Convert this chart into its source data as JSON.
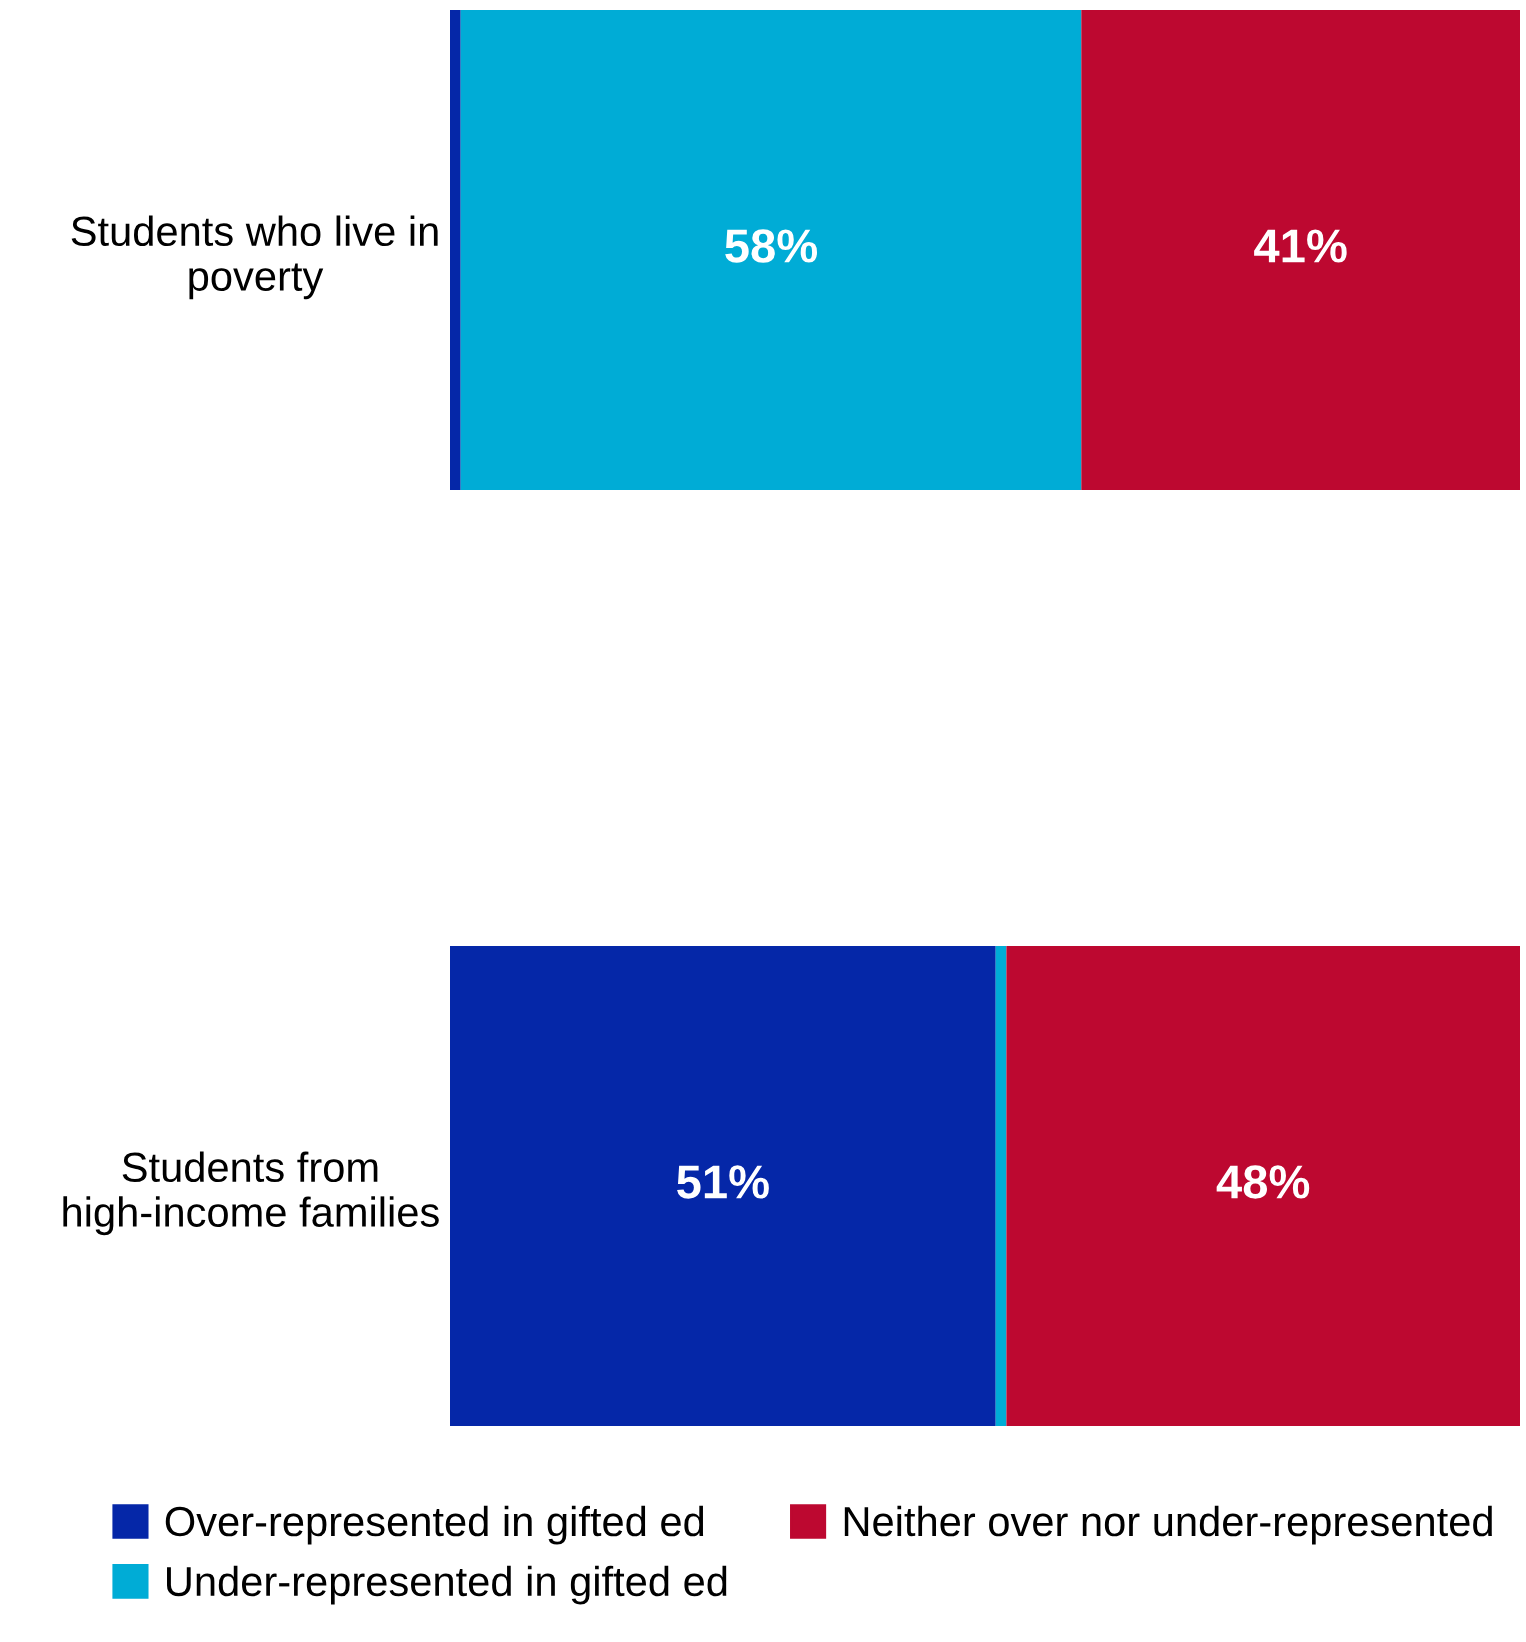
{
  "chart_data": {
    "type": "bar",
    "orientation": "horizontal",
    "stacked": true,
    "categories": [
      "Students who live in poverty",
      "Students from high-income families"
    ],
    "series": [
      {
        "name": "Over-represented in gifted ed",
        "color": "#0527a8",
        "values": [
          1,
          51
        ],
        "value_labels": [
          null,
          "51%"
        ]
      },
      {
        "name": "Under-represented in gifted ed",
        "color": "#00acd6",
        "values": [
          58,
          1
        ],
        "value_labels": [
          "58%",
          null
        ]
      },
      {
        "name": "Neither over nor under-represented",
        "color": "#bd0830",
        "values": [
          41,
          48
        ],
        "value_labels": [
          "41%",
          "48%"
        ]
      }
    ],
    "xlim": [
      0,
      100
    ],
    "tick_labels": "y",
    "grid": false,
    "legend": "bottom"
  }
}
